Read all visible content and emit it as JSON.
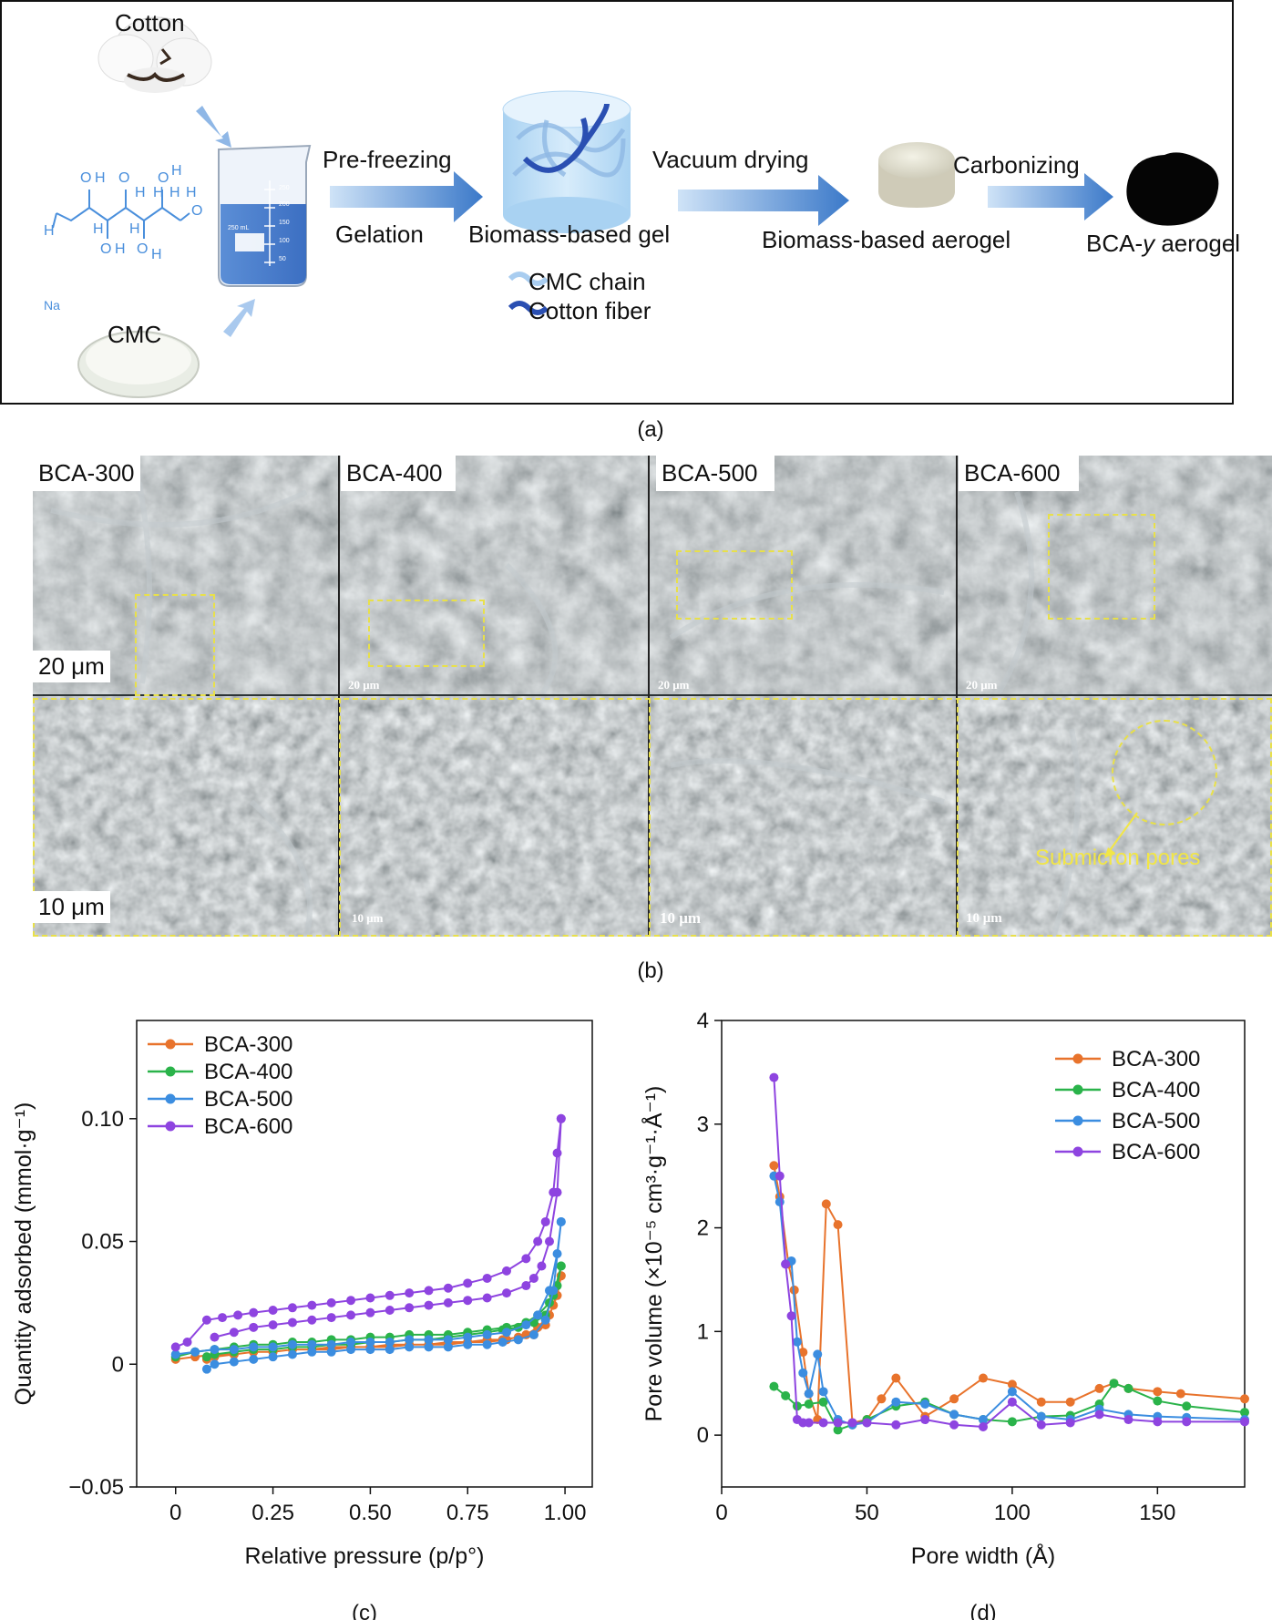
{
  "panel_a": {
    "cotton_label": "Cotton",
    "cmc_label": "CMC",
    "na_label": "Na",
    "beaker_label": "250 mL",
    "beaker_ticks": [
      "250",
      "200",
      "150",
      "100",
      "50"
    ],
    "steps": [
      {
        "top": "Pre-freezing",
        "bottom": "Gelation"
      },
      {
        "top": "Vacuum drying",
        "bottom": ""
      },
      {
        "top": "Carbonizing",
        "bottom": ""
      }
    ],
    "gel_label": "Biomass-based gel",
    "aerogel_label": "Biomass-based aerogel",
    "bca_label_prefix": "BCA-",
    "bca_label_italic": "y",
    "bca_label_suffix": " aerogel",
    "legend_cmc": "CMC chain",
    "legend_cotton": "Cotton fiber",
    "caption": "(a)",
    "atoms": [
      "O",
      "H",
      "O",
      "H",
      "H",
      "O",
      "H",
      "H",
      "H",
      "O",
      "H",
      "H",
      "O",
      "H",
      "O",
      "H",
      "H"
    ]
  },
  "panel_b": {
    "caption": "(b)",
    "labels": [
      "BCA-300",
      "BCA-400",
      "BCA-500",
      "BCA-600"
    ],
    "scale_top_first": "20 μm",
    "scale_top": "20 μm",
    "scale_bottom_first": "10 μm",
    "scale_bottom": "10 μm",
    "annotation": "Submicron pores"
  },
  "chart_data": [
    {
      "type": "line",
      "caption": "(c)",
      "xlabel": "Relative pressure (p/p°)",
      "ylabel": "Quantity adsorbed (mmol·g⁻¹)",
      "xlim": [
        -0.1,
        1.07
      ],
      "ylim": [
        -0.05,
        0.14
      ],
      "xticks": [
        "0",
        "0.25",
        "0.50",
        "0.75",
        "1.00"
      ],
      "yticks": [
        "−0.05",
        "0",
        "0.05",
        "0.10"
      ],
      "legend_position": "top-left",
      "series": [
        {
          "name": "BCA-300",
          "color": "#e8732c",
          "x": [
            0,
            0.05,
            0.1,
            0.15,
            0.2,
            0.25,
            0.3,
            0.35,
            0.4,
            0.45,
            0.5,
            0.55,
            0.6,
            0.65,
            0.7,
            0.75,
            0.8,
            0.85,
            0.9,
            0.93,
            0.96,
            0.98,
            0.99,
            0.99,
            0.97,
            0.95,
            0.92,
            0.88,
            0.84,
            0.8,
            0.75,
            0.7,
            0.65,
            0.6,
            0.55,
            0.5,
            0.45,
            0.4,
            0.35,
            0.3,
            0.25,
            0.2,
            0.15,
            0.1,
            0.08
          ],
          "y": [
            0.002,
            0.003,
            0.004,
            0.004,
            0.005,
            0.005,
            0.006,
            0.006,
            0.006,
            0.007,
            0.007,
            0.007,
            0.008,
            0.008,
            0.008,
            0.009,
            0.009,
            0.01,
            0.012,
            0.015,
            0.02,
            0.028,
            0.036,
            0.036,
            0.024,
            0.016,
            0.012,
            0.011,
            0.01,
            0.01,
            0.009,
            0.009,
            0.008,
            0.008,
            0.008,
            0.007,
            0.007,
            0.007,
            0.006,
            0.006,
            0.005,
            0.005,
            0.004,
            0.003,
            0.002
          ]
        },
        {
          "name": "BCA-400",
          "color": "#2ab34a",
          "x": [
            0,
            0.05,
            0.1,
            0.15,
            0.2,
            0.25,
            0.3,
            0.35,
            0.4,
            0.45,
            0.5,
            0.55,
            0.6,
            0.65,
            0.7,
            0.75,
            0.8,
            0.85,
            0.9,
            0.93,
            0.96,
            0.98,
            0.99,
            0.99,
            0.97,
            0.95,
            0.92,
            0.88,
            0.84,
            0.8,
            0.75,
            0.7,
            0.65,
            0.6,
            0.55,
            0.5,
            0.45,
            0.4,
            0.35,
            0.3,
            0.25,
            0.2,
            0.15,
            0.1,
            0.08
          ],
          "y": [
            0.003,
            0.005,
            0.006,
            0.007,
            0.008,
            0.008,
            0.009,
            0.009,
            0.01,
            0.01,
            0.011,
            0.011,
            0.012,
            0.012,
            0.012,
            0.013,
            0.014,
            0.015,
            0.017,
            0.02,
            0.025,
            0.032,
            0.04,
            0.04,
            0.028,
            0.02,
            0.017,
            0.015,
            0.014,
            0.013,
            0.012,
            0.011,
            0.01,
            0.01,
            0.009,
            0.009,
            0.008,
            0.008,
            0.007,
            0.007,
            0.006,
            0.006,
            0.005,
            0.004,
            0.003
          ]
        },
        {
          "name": "BCA-500",
          "color": "#3b8de0",
          "x": [
            0,
            0.05,
            0.1,
            0.15,
            0.2,
            0.25,
            0.3,
            0.35,
            0.4,
            0.45,
            0.5,
            0.55,
            0.6,
            0.65,
            0.7,
            0.75,
            0.8,
            0.85,
            0.9,
            0.93,
            0.96,
            0.98,
            0.99,
            0.99,
            0.97,
            0.95,
            0.92,
            0.88,
            0.84,
            0.8,
            0.75,
            0.7,
            0.65,
            0.6,
            0.55,
            0.5,
            0.45,
            0.4,
            0.35,
            0.3,
            0.25,
            0.2,
            0.15,
            0.1,
            0.08
          ],
          "y": [
            0.004,
            0.005,
            0.006,
            0.006,
            0.007,
            0.007,
            0.008,
            0.008,
            0.008,
            0.009,
            0.009,
            0.009,
            0.01,
            0.01,
            0.01,
            0.011,
            0.012,
            0.013,
            0.016,
            0.02,
            0.03,
            0.045,
            0.058,
            0.058,
            0.03,
            0.018,
            0.012,
            0.01,
            0.009,
            0.008,
            0.008,
            0.007,
            0.007,
            0.007,
            0.006,
            0.006,
            0.006,
            0.005,
            0.005,
            0.004,
            0.003,
            0.002,
            0.001,
            0.0,
            -0.002
          ]
        },
        {
          "name": "BCA-600",
          "color": "#8e44e0",
          "x": [
            0,
            0.03,
            0.08,
            0.12,
            0.16,
            0.2,
            0.25,
            0.3,
            0.35,
            0.4,
            0.45,
            0.5,
            0.55,
            0.6,
            0.65,
            0.7,
            0.75,
            0.8,
            0.85,
            0.9,
            0.93,
            0.95,
            0.97,
            0.98,
            0.99,
            0.99,
            0.98,
            0.96,
            0.94,
            0.92,
            0.9,
            0.85,
            0.8,
            0.75,
            0.7,
            0.65,
            0.6,
            0.55,
            0.5,
            0.45,
            0.4,
            0.35,
            0.3,
            0.25,
            0.2,
            0.15,
            0.1
          ],
          "y": [
            0.007,
            0.009,
            0.018,
            0.019,
            0.02,
            0.021,
            0.022,
            0.023,
            0.024,
            0.025,
            0.026,
            0.027,
            0.028,
            0.029,
            0.03,
            0.031,
            0.033,
            0.035,
            0.038,
            0.043,
            0.05,
            0.058,
            0.07,
            0.086,
            0.1,
            0.1,
            0.07,
            0.05,
            0.04,
            0.035,
            0.032,
            0.029,
            0.027,
            0.026,
            0.025,
            0.024,
            0.023,
            0.022,
            0.021,
            0.02,
            0.019,
            0.018,
            0.017,
            0.016,
            0.015,
            0.013,
            0.011
          ]
        }
      ]
    },
    {
      "type": "line",
      "caption": "(d)",
      "xlabel": "Pore width (Å)",
      "ylabel": "Pore volume (×10⁻⁵ cm³·g⁻¹·Å⁻¹)",
      "xlim": [
        0,
        180
      ],
      "ylim": [
        -0.5,
        4
      ],
      "xticks": [
        "0",
        "50",
        "100",
        "150"
      ],
      "yticks": [
        "0",
        "1",
        "2",
        "3",
        "4"
      ],
      "legend_position": "top-right",
      "series": [
        {
          "name": "BCA-300",
          "color": "#e8732c",
          "x": [
            18,
            20,
            23,
            25,
            28,
            30,
            33,
            36,
            40,
            45,
            50,
            55,
            60,
            70,
            80,
            90,
            100,
            110,
            120,
            130,
            135,
            140,
            150,
            158,
            180
          ],
          "y": [
            2.6,
            2.3,
            1.65,
            1.4,
            0.8,
            0.4,
            0.15,
            2.23,
            2.03,
            0.12,
            0.15,
            0.35,
            0.55,
            0.18,
            0.35,
            0.55,
            0.49,
            0.32,
            0.32,
            0.45,
            0.5,
            0.45,
            0.42,
            0.4,
            0.35
          ]
        },
        {
          "name": "BCA-400",
          "color": "#2ab34a",
          "x": [
            18,
            22,
            26,
            30,
            35,
            40,
            45,
            50,
            60,
            70,
            80,
            90,
            100,
            110,
            120,
            130,
            135,
            140,
            150,
            160,
            180
          ],
          "y": [
            0.47,
            0.38,
            0.28,
            0.3,
            0.32,
            0.05,
            0.1,
            0.15,
            0.28,
            0.32,
            0.2,
            0.15,
            0.13,
            0.18,
            0.19,
            0.3,
            0.5,
            0.45,
            0.33,
            0.28,
            0.22
          ]
        },
        {
          "name": "BCA-500",
          "color": "#3b8de0",
          "x": [
            18,
            20,
            22,
            24,
            26,
            28,
            30,
            33,
            35,
            40,
            45,
            50,
            60,
            70,
            80,
            90,
            100,
            110,
            120,
            130,
            140,
            150,
            160,
            180
          ],
          "y": [
            2.5,
            2.25,
            1.65,
            1.68,
            0.9,
            0.6,
            0.4,
            0.78,
            0.42,
            0.15,
            0.1,
            0.12,
            0.32,
            0.3,
            0.2,
            0.15,
            0.42,
            0.18,
            0.15,
            0.25,
            0.2,
            0.18,
            0.17,
            0.15
          ]
        },
        {
          "name": "BCA-600",
          "color": "#8e44e0",
          "x": [
            18,
            20,
            22,
            24,
            26,
            28,
            30,
            35,
            40,
            45,
            50,
            60,
            70,
            80,
            90,
            100,
            110,
            120,
            130,
            140,
            150,
            160,
            180
          ],
          "y": [
            3.45,
            2.5,
            1.65,
            1.15,
            0.15,
            0.12,
            0.12,
            0.12,
            0.12,
            0.12,
            0.12,
            0.1,
            0.15,
            0.1,
            0.08,
            0.32,
            0.1,
            0.12,
            0.2,
            0.15,
            0.13,
            0.13,
            0.13
          ]
        }
      ]
    }
  ]
}
